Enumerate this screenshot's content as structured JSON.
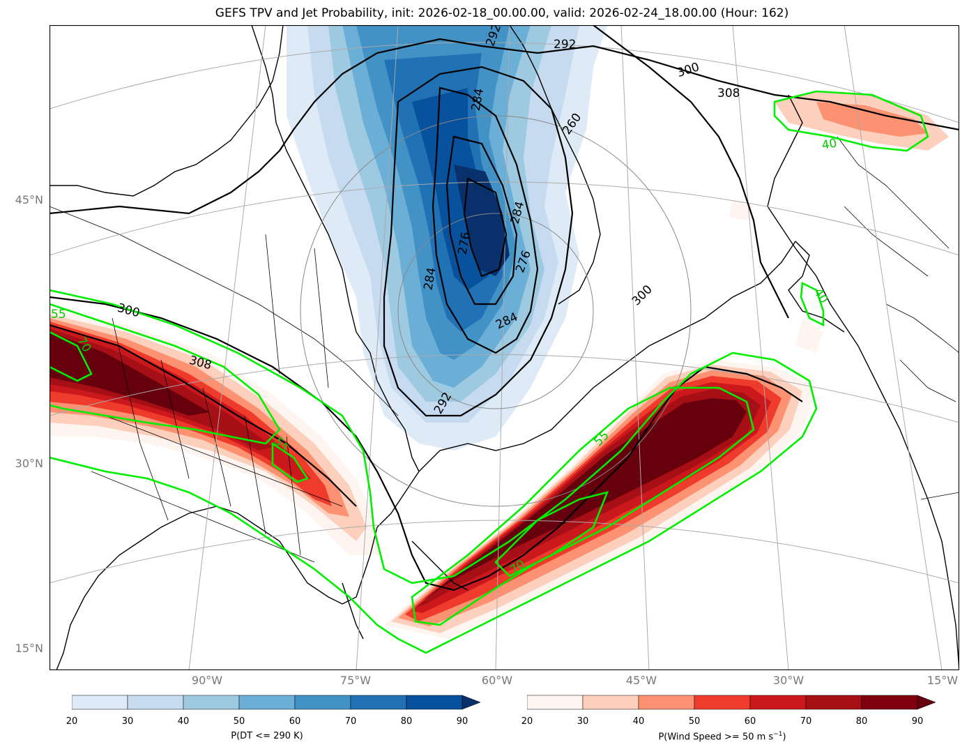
{
  "title": "GEFS TPV and Jet Probability, init: 2026-02-18_00.00.00, valid: 2026-02-24_18.00.00 (Hour: 162)",
  "latitude_labels": [
    "45°N",
    "30°N",
    "15°N"
  ],
  "longitude_labels": [
    "90°W",
    "75°W",
    "60°W",
    "45°W",
    "30°W",
    "15°W"
  ],
  "tpv_colorbar": {
    "caption": "P(DT <= 290 K)",
    "ticks": [
      "20",
      "30",
      "40",
      "50",
      "60",
      "70",
      "80",
      "90"
    ],
    "colors": [
      "#deebf7",
      "#c6dbef",
      "#9ecae1",
      "#6baed6",
      "#4292c6",
      "#2171b5",
      "#08519c",
      "#08306b"
    ]
  },
  "jet_colorbar": {
    "caption": "P(Wind Speed >= 50 m s",
    "caption_sup": "−1",
    "caption_end": ")",
    "ticks": [
      "20",
      "30",
      "40",
      "50",
      "60",
      "70",
      "80",
      "90"
    ],
    "colors": [
      "#fff5f0",
      "#fdd0bd",
      "#fc9272",
      "#ef3b2c",
      "#cb181d",
      "#a50f15",
      "#800010",
      "#67000d"
    ]
  },
  "theta_contour_labels": [
    "292",
    "292",
    "300",
    "308",
    "260",
    "284",
    "276",
    "284",
    "284",
    "276",
    "284",
    "292",
    "300",
    "300",
    "308"
  ],
  "wind_contour_labels": [
    "55",
    "70",
    "55",
    "55",
    "70",
    "40",
    "40"
  ],
  "colors": {
    "wind_contour": "#00ee00",
    "theta_contour": "#000000",
    "graticule": "#aaaaaa"
  }
}
